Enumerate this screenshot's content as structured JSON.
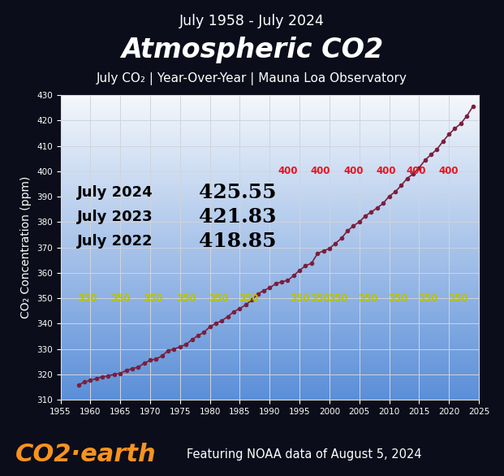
{
  "chart_data": {
    "type": "line",
    "header": "July 1958 - July 2024",
    "title": "Atmospheric CO2",
    "subtitle": "July CO₂ | Year-Over-Year | Mauna Loa Observatory",
    "y_label": "CO₂ Concentration (ppm)",
    "x": [
      1958,
      1959,
      1960,
      1961,
      1962,
      1963,
      1964,
      1965,
      1966,
      1967,
      1968,
      1969,
      1970,
      1971,
      1972,
      1973,
      1974,
      1975,
      1976,
      1977,
      1978,
      1979,
      1980,
      1981,
      1982,
      1983,
      1984,
      1985,
      1986,
      1987,
      1988,
      1989,
      1990,
      1991,
      1992,
      1993,
      1994,
      1995,
      1996,
      1997,
      1998,
      1999,
      2000,
      2001,
      2002,
      2003,
      2004,
      2005,
      2006,
      2007,
      2008,
      2009,
      2010,
      2011,
      2012,
      2013,
      2014,
      2015,
      2016,
      2017,
      2018,
      2019,
      2020,
      2021,
      2022,
      2023,
      2024
    ],
    "values": [
      315.86,
      317.0,
      317.7,
      318.4,
      319.1,
      319.5,
      320.0,
      320.4,
      321.6,
      322.3,
      322.9,
      324.4,
      325.6,
      326.1,
      327.3,
      329.4,
      330.0,
      330.9,
      331.8,
      333.7,
      335.3,
      336.6,
      338.8,
      340.1,
      341.2,
      342.8,
      344.7,
      346.0,
      347.4,
      349.3,
      351.6,
      353.1,
      354.1,
      355.7,
      356.5,
      357.0,
      358.9,
      361.0,
      362.8,
      363.8,
      367.6,
      368.7,
      369.6,
      371.6,
      373.6,
      376.5,
      378.5,
      380.1,
      382.4,
      384.0,
      385.6,
      387.4,
      390.2,
      391.9,
      394.4,
      397.2,
      399.0,
      401.4,
      404.4,
      406.6,
      408.7,
      411.8,
      414.6,
      416.9,
      418.85,
      421.83,
      425.55
    ],
    "color": "#7a1f3d",
    "marker": "o",
    "line_style": "solid",
    "xlim": [
      1955,
      2025
    ],
    "xticks": [
      1955,
      1960,
      1965,
      1970,
      1975,
      1980,
      1985,
      1990,
      1995,
      2000,
      2005,
      2010,
      2015,
      2020,
      2025
    ],
    "ylim": [
      310,
      430
    ],
    "yticks": [
      310,
      320,
      330,
      340,
      350,
      360,
      370,
      380,
      390,
      400,
      410,
      420,
      430
    ],
    "grid": true,
    "callouts": [
      {
        "label": "July 2024",
        "value": 425.55
      },
      {
        "label": "July 2023",
        "value": 421.83
      },
      {
        "label": "July 2022",
        "value": 418.85
      }
    ],
    "threshold_labels": [
      {
        "value": 350,
        "label": "350",
        "color": "#b8c400",
        "x": [
          1959.5,
          1965,
          1970.5,
          1976,
          1981.5,
          1986.5,
          1995,
          1998.5,
          2001.5,
          2006.5,
          2011.5,
          2016.5,
          2021.5
        ]
      },
      {
        "value": 400,
        "label": "400",
        "color": "#e8141e",
        "x": [
          1993,
          1998.5,
          2004,
          2009.5,
          2014.5,
          2020
        ]
      }
    ],
    "footer_brand": "CO2·earth",
    "footer_note": "Featuring NOAA data of August 5, 2024"
  }
}
